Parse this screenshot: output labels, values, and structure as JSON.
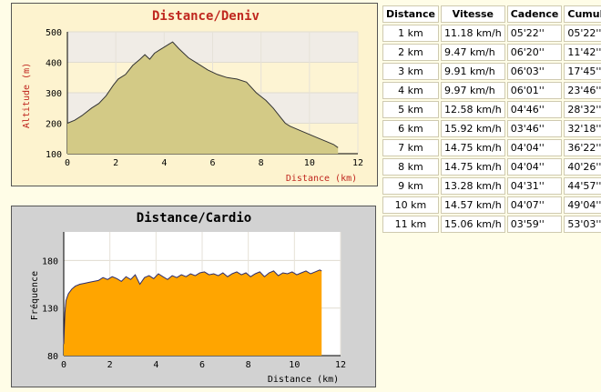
{
  "chart_data": [
    {
      "type": "area",
      "title": "Distance/Deniv",
      "xlabel": "Distance (km)",
      "ylabel": "Altitude (m)",
      "xlim": [
        0,
        12
      ],
      "ylim": [
        100,
        500
      ],
      "xticks": [
        "0",
        "2",
        "4",
        "6",
        "8",
        "10",
        "12"
      ],
      "yticks": [
        "100",
        "200",
        "300",
        "400",
        "500"
      ],
      "grid": true,
      "colors": {
        "fill": "#d3ca86",
        "line": "#333333",
        "title": "#c0271f",
        "axis_label": "#c0271f",
        "plot_bg": "#fdf4d3",
        "plot_bg_alt": "#f0ece6"
      },
      "x": [
        0,
        0.3,
        0.6,
        1.0,
        1.3,
        1.6,
        1.9,
        2.1,
        2.4,
        2.7,
        3.0,
        3.2,
        3.4,
        3.6,
        3.8,
        4.0,
        4.2,
        4.35,
        4.6,
        5.0,
        5.4,
        5.8,
        6.2,
        6.6,
        7.0,
        7.4,
        7.8,
        8.2,
        8.5,
        8.8,
        9.0,
        9.2,
        9.5,
        9.8,
        10.1,
        10.4,
        10.7,
        11.0,
        11.18
      ],
      "values": [
        200,
        210,
        225,
        250,
        265,
        290,
        325,
        345,
        360,
        390,
        410,
        425,
        410,
        430,
        440,
        450,
        460,
        467,
        445,
        415,
        395,
        375,
        360,
        350,
        345,
        335,
        300,
        275,
        250,
        220,
        200,
        190,
        180,
        170,
        160,
        150,
        140,
        130,
        120
      ]
    },
    {
      "type": "area",
      "title": "Distance/Cardio",
      "xlabel": "Distance (km)",
      "ylabel": "Fréquence",
      "xlim": [
        0,
        12
      ],
      "ylim": [
        80,
        210
      ],
      "xticks": [
        "0",
        "2",
        "4",
        "6",
        "8",
        "10",
        "12"
      ],
      "yticks": [
        "80",
        "130",
        "180"
      ],
      "grid": true,
      "colors": {
        "fill": "#ffa500",
        "line": "#2d2d6e",
        "title": "#000000",
        "plot_bg": "#ffffff"
      },
      "x": [
        0,
        0.05,
        0.1,
        0.2,
        0.35,
        0.5,
        0.7,
        0.9,
        1.1,
        1.3,
        1.5,
        1.7,
        1.9,
        2.1,
        2.3,
        2.5,
        2.7,
        2.9,
        3.1,
        3.3,
        3.5,
        3.7,
        3.9,
        4.1,
        4.3,
        4.5,
        4.7,
        4.9,
        5.1,
        5.3,
        5.5,
        5.7,
        5.9,
        6.1,
        6.3,
        6.5,
        6.7,
        6.9,
        7.1,
        7.3,
        7.5,
        7.7,
        7.9,
        8.1,
        8.3,
        8.5,
        8.7,
        8.9,
        9.1,
        9.3,
        9.5,
        9.7,
        9.9,
        10.1,
        10.3,
        10.5,
        10.7,
        10.9,
        11.1,
        11.18
      ],
      "values": [
        92,
        125,
        138,
        145,
        150,
        153,
        155,
        156,
        157,
        158,
        159,
        162,
        160,
        163,
        161,
        158,
        163,
        160,
        165,
        155,
        162,
        164,
        161,
        166,
        163,
        160,
        164,
        162,
        165,
        163,
        166,
        164,
        167,
        168,
        165,
        166,
        164,
        167,
        163,
        166,
        168,
        165,
        167,
        163,
        166,
        168,
        163,
        167,
        169,
        164,
        167,
        166,
        168,
        165,
        167,
        169,
        166,
        168,
        170,
        169
      ]
    }
  ],
  "table": {
    "headers": [
      "Distance",
      "Vitesse",
      "Cadence",
      "Cumul"
    ],
    "rows": [
      [
        "1 km",
        "11.18 km/h",
        "05'22''",
        "05'22''"
      ],
      [
        "2 km",
        "9.47 km/h",
        "06'20''",
        "11'42''"
      ],
      [
        "3 km",
        "9.91 km/h",
        "06'03''",
        "17'45''"
      ],
      [
        "4 km",
        "9.97 km/h",
        "06'01''",
        "23'46''"
      ],
      [
        "5 km",
        "12.58 km/h",
        "04'46''",
        "28'32''"
      ],
      [
        "6 km",
        "15.92 km/h",
        "03'46''",
        "32'18''"
      ],
      [
        "7 km",
        "14.75 km/h",
        "04'04''",
        "36'22''"
      ],
      [
        "8 km",
        "14.75 km/h",
        "04'04''",
        "40'26''"
      ],
      [
        "9 km",
        "13.28 km/h",
        "04'31''",
        "44'57''"
      ],
      [
        "10 km",
        "14.57 km/h",
        "04'07''",
        "49'04''"
      ],
      [
        "11 km",
        "15.06 km/h",
        "03'59''",
        "53'03''"
      ]
    ]
  }
}
